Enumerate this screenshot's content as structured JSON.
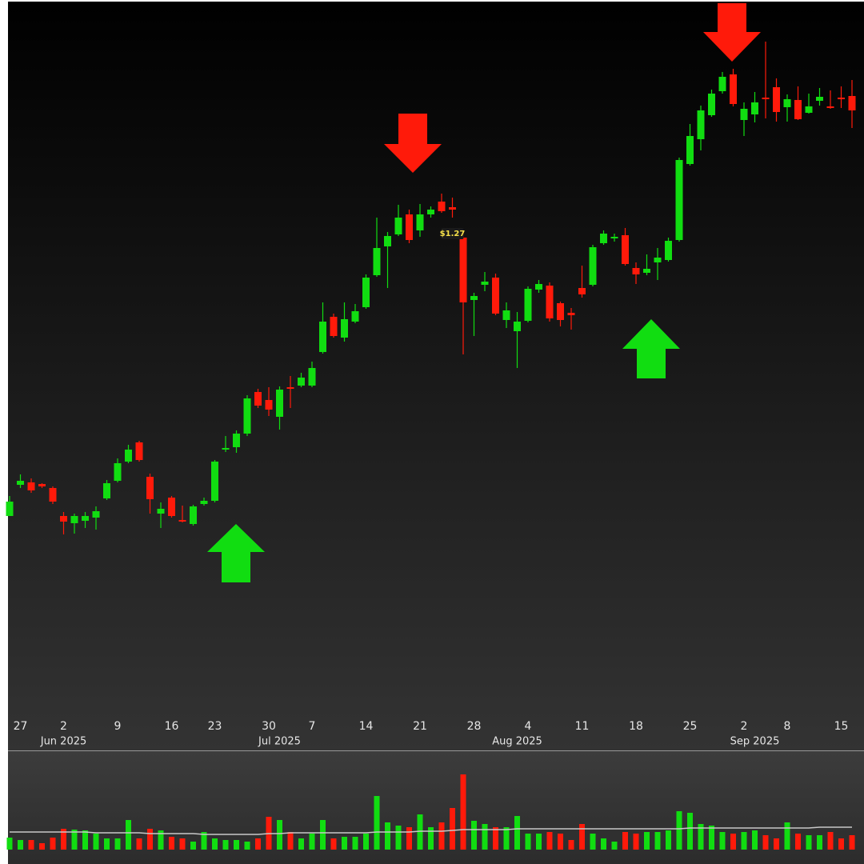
{
  "chart_data": {
    "type": "candlestick",
    "up_color": "#11dd11",
    "down_color": "#ff1a0a",
    "ylim": [
      0.682,
      1.562
    ],
    "categories": [
      null,
      "27",
      null,
      null,
      null,
      "2",
      null,
      null,
      null,
      null,
      "9",
      null,
      null,
      null,
      null,
      "16",
      null,
      null,
      null,
      "23",
      null,
      null,
      null,
      null,
      "30",
      null,
      null,
      null,
      "7",
      null,
      null,
      null,
      null,
      "14",
      null,
      null,
      null,
      null,
      "21",
      null,
      null,
      null,
      null,
      "28",
      null,
      null,
      null,
      null,
      "4",
      null,
      null,
      null,
      null,
      "11",
      null,
      null,
      null,
      null,
      "18",
      null,
      null,
      null,
      null,
      "25",
      null,
      null,
      null,
      null,
      "2",
      null,
      null,
      null,
      "8",
      null,
      null,
      null,
      null,
      "15",
      null
    ],
    "months": [
      null,
      null,
      null,
      null,
      null,
      "Jun 2025",
      null,
      null,
      null,
      null,
      null,
      null,
      null,
      null,
      null,
      null,
      null,
      null,
      null,
      null,
      null,
      null,
      null,
      null,
      null,
      "Jul 2025",
      null,
      null,
      null,
      null,
      null,
      null,
      null,
      null,
      null,
      null,
      null,
      null,
      null,
      null,
      null,
      null,
      null,
      null,
      null,
      null,
      null,
      "Aug 2025",
      null,
      null,
      null,
      null,
      null,
      null,
      null,
      null,
      null,
      null,
      null,
      null,
      null,
      null,
      null,
      null,
      null,
      null,
      null,
      null,
      null,
      "Sep 2025",
      null,
      null,
      null,
      null,
      null,
      null,
      null,
      null,
      null,
      null
    ],
    "open": [
      0.917,
      0.956,
      0.959,
      0.957,
      0.952,
      0.917,
      0.908,
      0.911,
      0.915,
      0.939,
      0.961,
      0.985,
      1.009,
      0.966,
      0.92,
      0.94,
      0.912,
      0.907,
      0.932,
      0.936,
      1.0,
      1.003,
      1.02,
      1.072,
      1.062,
      1.041,
      1.078,
      1.08,
      1.08,
      1.122,
      1.166,
      1.14,
      1.16,
      1.178,
      1.218,
      1.254,
      1.269,
      1.294,
      1.274,
      1.294,
      1.31,
      1.303,
      1.265,
      1.187,
      1.206,
      1.215,
      1.162,
      1.148,
      1.161,
      1.2,
      1.205,
      1.183,
      1.171,
      1.202,
      1.206,
      1.258,
      1.264,
      1.268,
      1.227,
      1.221,
      1.234,
      1.237,
      1.262,
      1.357,
      1.388,
      1.418,
      1.448,
      1.469,
      1.412,
      1.419,
      1.44,
      1.453,
      1.428,
      1.437,
      1.421,
      1.436,
      1.429,
      1.44,
      1.442
    ],
    "high": [
      0.942,
      0.969,
      0.964,
      0.958,
      0.954,
      0.922,
      0.92,
      0.922,
      0.929,
      0.962,
      0.989,
      1.006,
      1.011,
      0.97,
      0.934,
      0.942,
      0.93,
      0.931,
      0.94,
      0.987,
      1.017,
      1.024,
      1.068,
      1.076,
      1.078,
      1.079,
      1.092,
      1.096,
      1.11,
      1.184,
      1.17,
      1.184,
      1.182,
      1.219,
      1.29,
      1.272,
      1.306,
      1.3,
      1.307,
      1.304,
      1.32,
      1.315,
      1.272,
      1.196,
      1.222,
      1.22,
      1.184,
      1.172,
      1.204,
      1.212,
      1.209,
      1.185,
      1.177,
      1.23,
      1.256,
      1.274,
      1.27,
      1.277,
      1.234,
      1.244,
      1.252,
      1.265,
      1.365,
      1.407,
      1.43,
      1.45,
      1.472,
      1.476,
      1.434,
      1.447,
      1.51,
      1.464,
      1.444,
      1.454,
      1.445,
      1.452,
      1.449,
      1.454,
      1.462
    ],
    "low": [
      0.917,
      0.952,
      0.946,
      0.952,
      0.932,
      0.894,
      0.895,
      0.902,
      0.9,
      0.937,
      0.959,
      0.983,
      0.985,
      0.92,
      0.902,
      0.915,
      0.909,
      0.905,
      0.93,
      0.934,
      0.997,
      0.996,
      1.017,
      1.052,
      1.042,
      1.025,
      1.052,
      1.078,
      1.078,
      1.12,
      1.14,
      1.135,
      1.158,
      1.176,
      1.216,
      1.202,
      1.267,
      1.258,
      1.266,
      1.29,
      1.296,
      1.29,
      1.119,
      1.142,
      1.198,
      1.168,
      1.152,
      1.102,
      1.159,
      1.196,
      1.16,
      1.154,
      1.15,
      1.19,
      1.204,
      1.256,
      1.26,
      1.23,
      1.207,
      1.218,
      1.212,
      1.235,
      1.26,
      1.355,
      1.374,
      1.416,
      1.445,
      1.429,
      1.392,
      1.409,
      1.414,
      1.41,
      1.41,
      1.412,
      1.42,
      1.43,
      1.426,
      1.427,
      1.402
    ],
    "close": [
      0.935,
      0.961,
      0.949,
      0.954,
      0.935,
      0.91,
      0.917,
      0.917,
      0.923,
      0.958,
      0.983,
      1.0,
      0.987,
      0.938,
      0.926,
      0.917,
      0.91,
      0.929,
      0.936,
      0.985,
      1.002,
      1.02,
      1.064,
      1.055,
      1.05,
      1.075,
      1.076,
      1.09,
      1.102,
      1.16,
      1.142,
      1.163,
      1.173,
      1.215,
      1.252,
      1.267,
      1.29,
      1.262,
      1.294,
      1.3,
      1.298,
      1.3,
      1.184,
      1.192,
      1.21,
      1.17,
      1.174,
      1.16,
      1.201,
      1.207,
      1.164,
      1.162,
      1.168,
      1.194,
      1.253,
      1.27,
      1.266,
      1.232,
      1.219,
      1.226,
      1.24,
      1.261,
      1.362,
      1.392,
      1.424,
      1.445,
      1.466,
      1.432,
      1.426,
      1.434,
      1.438,
      1.422,
      1.438,
      1.413,
      1.429,
      1.441,
      1.427,
      1.438,
      1.424
    ],
    "price_label": {
      "value": 1.27,
      "label": "$1.27"
    },
    "volume_ylim": [
      0,
      100
    ],
    "volume": [
      15,
      12,
      12,
      8,
      15,
      26,
      25,
      24,
      20,
      14,
      14,
      37,
      14,
      26,
      24,
      16,
      14,
      10,
      22,
      14,
      12,
      12,
      10,
      14,
      41,
      37,
      22,
      14,
      20,
      37,
      14,
      16,
      16,
      20,
      67,
      34,
      30,
      28,
      44,
      28,
      34,
      52,
      94,
      36,
      32,
      28,
      28,
      42,
      20,
      20,
      22,
      20,
      12,
      32,
      20,
      14,
      10,
      22,
      20,
      22,
      22,
      24,
      48,
      46,
      32,
      30,
      22,
      20,
      22,
      24,
      18,
      14,
      34,
      20,
      18,
      18,
      22,
      14,
      18
    ],
    "volume_ma_color": "#c8c8c8",
    "volume_ma": [
      22,
      22,
      22,
      22,
      22,
      22,
      22,
      22,
      21,
      21,
      21,
      21,
      21,
      20,
      20,
      20,
      20,
      20,
      19,
      19,
      19,
      19,
      19,
      19,
      20,
      20,
      21,
      21,
      21,
      21,
      21,
      21,
      21,
      21,
      22,
      22,
      22,
      22,
      23,
      23,
      23,
      24,
      25,
      25,
      25,
      25,
      25,
      26,
      26,
      26,
      26,
      26,
      26,
      26,
      26,
      26,
      26,
      26,
      26,
      26,
      26,
      26,
      26,
      27,
      27,
      27,
      27,
      27,
      27,
      27,
      27,
      27,
      27,
      27,
      27,
      28,
      28,
      28,
      28
    ]
  }
}
